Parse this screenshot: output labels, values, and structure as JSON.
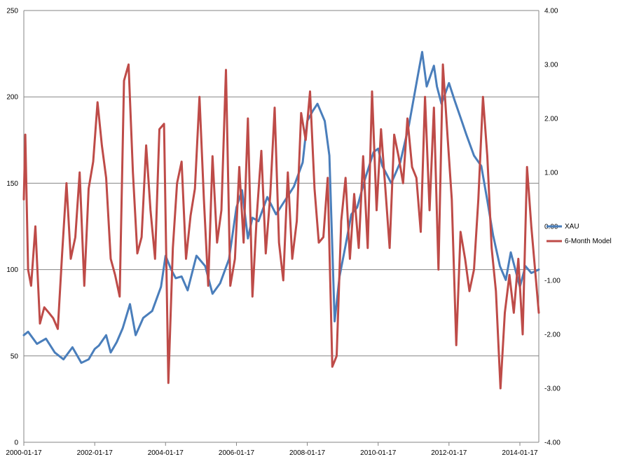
{
  "chart_data": {
    "type": "line",
    "title": "",
    "xlabel": "",
    "ylabel": "",
    "x_ticks": [
      "2000-01-17",
      "2002-01-17",
      "2004-01-17",
      "2006-01-17",
      "2008-01-17",
      "2010-01-17",
      "2012-01-17",
      "2014-01-17"
    ],
    "xlim": [
      "2000-01-17",
      "2014-07-31"
    ],
    "ylim": [
      0,
      250
    ],
    "y_ticks": [
      "0",
      "50",
      "100",
      "150",
      "200",
      "250"
    ],
    "y2lim": [
      -4,
      4
    ],
    "y2_ticks": [
      "-4.00",
      "-3.00",
      "-2.00",
      "-1.00",
      "0.00",
      "1.00",
      "2.00",
      "3.00",
      "4.00"
    ],
    "grid": "horizontal",
    "legend_position": "right",
    "series": [
      {
        "name": "XAU",
        "axis": "left",
        "color": "#4a7ebb",
        "x": [
          "2000-01-17",
          "2000-03-01",
          "2000-06-01",
          "2000-09-01",
          "2000-12-01",
          "2001-03-01",
          "2001-06-01",
          "2001-09-01",
          "2001-11-15",
          "2002-01-17",
          "2002-03-01",
          "2002-05-15",
          "2002-07-01",
          "2002-09-01",
          "2002-11-01",
          "2003-01-15",
          "2003-03-15",
          "2003-06-01",
          "2003-09-01",
          "2003-12-01",
          "2004-01-17",
          "2004-03-15",
          "2004-05-01",
          "2004-07-01",
          "2004-09-01",
          "2004-12-01",
          "2005-03-01",
          "2005-05-15",
          "2005-08-01",
          "2005-11-01",
          "2006-01-17",
          "2006-03-15",
          "2006-05-15",
          "2006-07-01",
          "2006-09-01",
          "2006-12-01",
          "2007-03-01",
          "2007-06-01",
          "2007-09-01",
          "2007-12-01",
          "2008-01-17",
          "2008-03-15",
          "2008-05-01",
          "2008-07-15",
          "2008-09-01",
          "2008-10-25",
          "2008-12-15",
          "2009-02-15",
          "2009-04-15",
          "2009-06-15",
          "2009-09-01",
          "2009-12-01",
          "2010-01-17",
          "2010-03-01",
          "2010-06-01",
          "2010-09-01",
          "2010-12-01",
          "2011-03-01",
          "2011-04-15",
          "2011-06-01",
          "2011-08-15",
          "2011-09-15",
          "2011-11-01",
          "2012-01-17",
          "2012-03-15",
          "2012-05-15",
          "2012-07-15",
          "2012-10-01",
          "2012-12-15",
          "2013-02-15",
          "2013-04-15",
          "2013-06-25",
          "2013-08-25",
          "2013-10-15",
          "2014-01-17",
          "2014-03-15",
          "2014-05-15",
          "2014-07-31"
        ],
        "y": [
          62,
          64,
          57,
          60,
          52,
          48,
          55,
          46,
          48,
          54,
          56,
          62,
          52,
          58,
          66,
          80,
          62,
          72,
          76,
          90,
          108,
          100,
          95,
          96,
          88,
          108,
          102,
          86,
          92,
          106,
          136,
          146,
          118,
          130,
          128,
          142,
          132,
          140,
          148,
          162,
          186,
          192,
          196,
          186,
          166,
          70,
          96,
          114,
          132,
          136,
          152,
          168,
          170,
          160,
          150,
          162,
          184,
          212,
          226,
          206,
          218,
          206,
          196,
          208,
          198,
          188,
          178,
          166,
          160,
          140,
          120,
          102,
          94,
          110,
          90,
          102,
          98,
          100
        ]
      },
      {
        "name": "6-Month Model",
        "axis": "right",
        "color": "#be4b48",
        "x": [
          "2000-01-17",
          "2000-02-01",
          "2000-03-01",
          "2000-04-01",
          "2000-05-15",
          "2000-07-01",
          "2000-08-15",
          "2000-10-01",
          "2000-11-15",
          "2001-01-01",
          "2001-02-15",
          "2001-04-01",
          "2001-05-15",
          "2001-07-01",
          "2001-08-15",
          "2001-10-01",
          "2001-11-15",
          "2002-01-01",
          "2002-02-15",
          "2002-04-01",
          "2002-05-15",
          "2002-07-01",
          "2002-08-15",
          "2002-10-01",
          "2002-11-15",
          "2003-01-01",
          "2003-02-15",
          "2003-04-01",
          "2003-05-15",
          "2003-07-01",
          "2003-08-15",
          "2003-10-01",
          "2003-11-15",
          "2004-01-01",
          "2004-02-15",
          "2004-04-01",
          "2004-05-15",
          "2004-07-01",
          "2004-08-15",
          "2004-10-01",
          "2004-11-15",
          "2005-01-01",
          "2005-02-15",
          "2005-04-01",
          "2005-05-15",
          "2005-07-01",
          "2005-08-15",
          "2005-10-01",
          "2005-11-15",
          "2006-01-01",
          "2006-02-15",
          "2006-04-01",
          "2006-05-15",
          "2006-07-01",
          "2006-08-15",
          "2006-10-01",
          "2006-11-15",
          "2007-01-01",
          "2007-02-15",
          "2007-04-01",
          "2007-05-15",
          "2007-07-01",
          "2007-08-15",
          "2007-10-01",
          "2007-11-15",
          "2008-01-01",
          "2008-02-15",
          "2008-04-01",
          "2008-05-15",
          "2008-07-01",
          "2008-08-15",
          "2008-10-01",
          "2008-11-15",
          "2009-01-01",
          "2009-02-15",
          "2009-04-01",
          "2009-05-15",
          "2009-07-01",
          "2009-08-15",
          "2009-10-01",
          "2009-11-15",
          "2010-01-01",
          "2010-02-15",
          "2010-04-01",
          "2010-05-15",
          "2010-07-01",
          "2010-08-15",
          "2010-10-01",
          "2010-11-15",
          "2011-01-01",
          "2011-02-15",
          "2011-04-01",
          "2011-05-15",
          "2011-07-01",
          "2011-08-15",
          "2011-10-01",
          "2011-11-15",
          "2012-01-01",
          "2012-02-15",
          "2012-04-01",
          "2012-05-15",
          "2012-07-01",
          "2012-08-15",
          "2012-10-01",
          "2012-11-15",
          "2013-01-01",
          "2013-02-15",
          "2013-04-01",
          "2013-05-15",
          "2013-07-01",
          "2013-08-15",
          "2013-10-01",
          "2013-11-15",
          "2014-01-01",
          "2014-02-15",
          "2014-04-01",
          "2014-05-15",
          "2014-07-31"
        ],
        "y": [
          0.5,
          1.7,
          -0.8,
          -1.1,
          0.0,
          -1.8,
          -1.5,
          -1.6,
          -1.7,
          -1.9,
          -0.5,
          0.8,
          -0.6,
          -0.2,
          1.0,
          -1.1,
          0.7,
          1.2,
          2.3,
          1.5,
          0.9,
          -0.6,
          -0.9,
          -1.3,
          2.7,
          3.0,
          1.0,
          -0.5,
          -0.2,
          1.5,
          0.3,
          -0.6,
          1.8,
          1.9,
          -2.9,
          -0.4,
          0.8,
          1.2,
          -0.6,
          0.2,
          0.7,
          2.4,
          0.5,
          -1.1,
          1.3,
          -0.3,
          0.3,
          2.9,
          -1.1,
          -0.6,
          1.1,
          -0.3,
          2.0,
          -1.3,
          0.2,
          1.4,
          -0.5,
          0.6,
          2.2,
          -0.3,
          -1.0,
          1.0,
          -0.6,
          0.1,
          2.1,
          1.6,
          2.5,
          0.7,
          -0.3,
          -0.2,
          0.9,
          -2.6,
          -2.4,
          0.1,
          0.9,
          -0.6,
          0.6,
          -0.4,
          1.3,
          -0.4,
          2.5,
          0.3,
          1.8,
          0.7,
          -0.4,
          1.7,
          1.3,
          0.8,
          2.0,
          1.1,
          0.9,
          -0.1,
          2.4,
          0.3,
          2.2,
          -0.8,
          3.0,
          1.7,
          0.5,
          -2.2,
          -0.1,
          -0.6,
          -1.2,
          -0.8,
          0.5,
          2.4,
          1.3,
          -0.4,
          -1.2,
          -3.0,
          -1.6,
          -0.9,
          -1.6,
          -0.6,
          -2.0,
          1.1,
          0.0,
          -1.6
        ]
      }
    ]
  }
}
